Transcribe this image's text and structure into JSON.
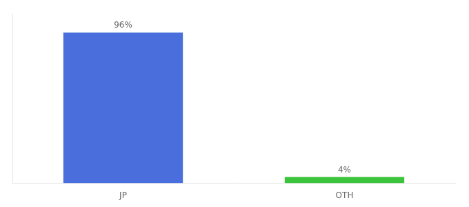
{
  "chart_data": {
    "type": "bar",
    "categories": [
      "JP",
      "OTH"
    ],
    "values": [
      96,
      4
    ],
    "value_labels": [
      "96%",
      "4%"
    ],
    "colors": [
      "#4a6fdc",
      "#3cc43c"
    ],
    "ylim": [
      0,
      108
    ],
    "data_labels": true,
    "tick_labels": "x",
    "grid": false
  }
}
